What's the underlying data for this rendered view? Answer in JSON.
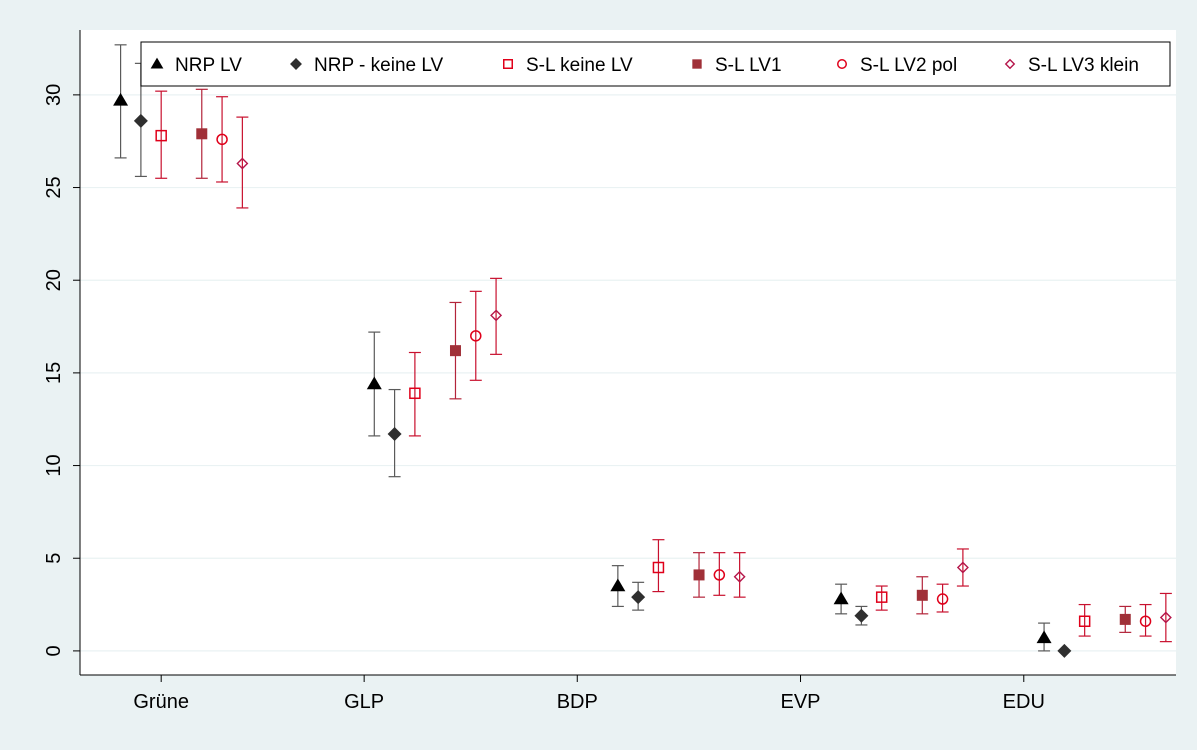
{
  "chart_data": {
    "type": "scatter",
    "title": "",
    "xlabel": "",
    "ylabel": "",
    "categories": [
      "Grüne",
      "GLP",
      "BDP",
      "EVP",
      "EDU"
    ],
    "ylim": [
      -1.3,
      33.5
    ],
    "yticks": [
      0,
      5,
      10,
      15,
      20,
      25,
      30
    ],
    "ytick_labels": [
      "0",
      "5",
      "10",
      "15",
      "20",
      "25",
      "30"
    ],
    "grid": true,
    "legend_position": "top",
    "series": [
      {
        "name": "NRP LV",
        "marker": "triangle",
        "color": "#000000",
        "bar_color": "#5a5a5a",
        "points": [
          {
            "x": 0.2,
            "y": 29.7,
            "lo": 26.6,
            "hi": 32.7
          },
          {
            "x": 1.45,
            "y": 14.4,
            "lo": 11.6,
            "hi": 17.2
          },
          {
            "x": 2.65,
            "y": 3.5,
            "lo": 2.4,
            "hi": 4.6
          },
          {
            "x": 3.75,
            "y": 2.8,
            "lo": 2.0,
            "hi": 3.6
          },
          {
            "x": 4.75,
            "y": 0.7,
            "lo": 0.0,
            "hi": 1.5
          }
        ]
      },
      {
        "name": "NRP - keine LV",
        "marker": "diamond",
        "color": "#2f2f2f",
        "bar_color": "#5a5a5a",
        "points": [
          {
            "x": 0.3,
            "y": 28.6,
            "lo": 25.6,
            "hi": 31.7
          },
          {
            "x": 1.55,
            "y": 11.7,
            "lo": 9.4,
            "hi": 14.1
          },
          {
            "x": 2.75,
            "y": 2.9,
            "lo": 2.2,
            "hi": 3.7
          },
          {
            "x": 3.85,
            "y": 1.9,
            "lo": 1.4,
            "hi": 2.4
          },
          {
            "x": 4.85,
            "y": 0.0,
            "lo": 0.0,
            "hi": 0.0
          }
        ]
      },
      {
        "name": "S-L keine LV",
        "marker": "square-hollow",
        "color": "#e0001a",
        "bar_color": "#c8102e",
        "points": [
          {
            "x": 0.4,
            "y": 27.8,
            "lo": 25.5,
            "hi": 30.2
          },
          {
            "x": 1.65,
            "y": 13.9,
            "lo": 11.6,
            "hi": 16.1
          },
          {
            "x": 2.85,
            "y": 4.5,
            "lo": 3.2,
            "hi": 6.0
          },
          {
            "x": 3.95,
            "y": 2.9,
            "lo": 2.2,
            "hi": 3.5
          },
          {
            "x": 4.95,
            "y": 1.6,
            "lo": 0.8,
            "hi": 2.5
          }
        ]
      },
      {
        "name": "S-L LV1",
        "marker": "square",
        "color": "#a03038",
        "bar_color": "#b3243a",
        "points": [
          {
            "x": 0.6,
            "y": 27.9,
            "lo": 25.5,
            "hi": 30.3
          },
          {
            "x": 1.85,
            "y": 16.2,
            "lo": 13.6,
            "hi": 18.8
          },
          {
            "x": 3.05,
            "y": 4.1,
            "lo": 2.9,
            "hi": 5.3
          },
          {
            "x": 4.15,
            "y": 3.0,
            "lo": 2.0,
            "hi": 4.0
          },
          {
            "x": 5.15,
            "y": 1.7,
            "lo": 1.0,
            "hi": 2.4
          }
        ]
      },
      {
        "name": "S-L LV2 pol",
        "marker": "circle-hollow",
        "color": "#e0001a",
        "bar_color": "#c8102e",
        "points": [
          {
            "x": 0.7,
            "y": 27.6,
            "lo": 25.3,
            "hi": 29.9
          },
          {
            "x": 1.95,
            "y": 17.0,
            "lo": 14.6,
            "hi": 19.4
          },
          {
            "x": 3.15,
            "y": 4.1,
            "lo": 3.0,
            "hi": 5.3
          },
          {
            "x": 4.25,
            "y": 2.8,
            "lo": 2.1,
            "hi": 3.6
          },
          {
            "x": 5.25,
            "y": 1.6,
            "lo": 0.8,
            "hi": 2.5
          }
        ]
      },
      {
        "name": "S-L LV3 klein",
        "marker": "diamond-hollow",
        "color": "#b5164a",
        "bar_color": "#c8102e",
        "points": [
          {
            "x": 0.8,
            "y": 26.3,
            "lo": 23.9,
            "hi": 28.8
          },
          {
            "x": 2.05,
            "y": 18.1,
            "lo": 16.0,
            "hi": 20.1
          },
          {
            "x": 3.25,
            "y": 4.0,
            "lo": 2.9,
            "hi": 5.3
          },
          {
            "x": 4.35,
            "y": 4.5,
            "lo": 3.5,
            "hi": 5.5
          },
          {
            "x": 5.35,
            "y": 1.8,
            "lo": 0.5,
            "hi": 3.1
          }
        ]
      }
    ],
    "xrange": [
      0,
      5.4
    ],
    "category_x": [
      0.4,
      1.4,
      2.45,
      3.55,
      4.65
    ]
  },
  "colors": {
    "background": "#eaf2f3",
    "plot_background": "#ffffff",
    "grid": "#eaf2f3",
    "axis": "#000000"
  }
}
